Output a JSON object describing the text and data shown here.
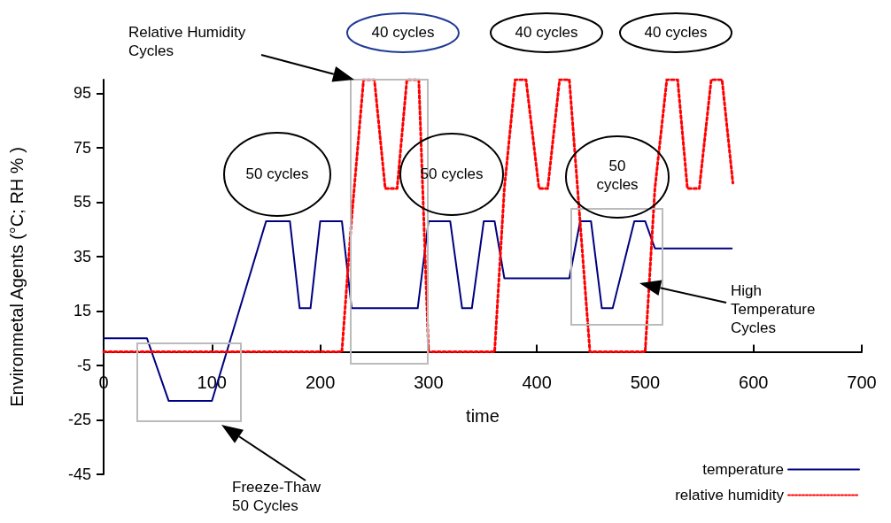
{
  "chart_data": {
    "type": "line",
    "xlabel": "time",
    "ylabel": "Environmetal Agents (°C; RH % )",
    "xlim": [
      0,
      700
    ],
    "xticks": [
      0,
      100,
      200,
      300,
      400,
      500,
      600,
      700
    ],
    "ylim": [
      -45,
      100
    ],
    "yticks": [
      -45,
      -25,
      -5,
      15,
      35,
      55,
      75,
      95
    ],
    "grid": false,
    "legend": "bottom right",
    "series": [
      {
        "name": "temperature",
        "color": "#000080",
        "line_style": "solid",
        "x": [
          0,
          40,
          60,
          100,
          150,
          172,
          181,
          191,
          200,
          220,
          229,
          290,
          300,
          320,
          331,
          340,
          351,
          361,
          370,
          430,
          440,
          450,
          460,
          470,
          490,
          500,
          509,
          580
        ],
        "values": [
          5,
          5,
          -18,
          -18,
          48,
          48,
          16,
          16,
          48,
          48,
          16,
          16,
          48,
          48,
          16,
          16,
          48,
          48,
          27,
          27,
          48,
          48,
          16,
          16,
          48,
          48,
          38,
          38
        ]
      },
      {
        "name": "relative humidity",
        "color": "#ff0000",
        "line_style": "dotted",
        "x": [
          0,
          220,
          229,
          240,
          250,
          260,
          271,
          280,
          291,
          300,
          361,
          370,
          380,
          390,
          402,
          410,
          421,
          430,
          449,
          500,
          509,
          520,
          530,
          539,
          550,
          561,
          571,
          581
        ],
        "values": [
          0,
          0,
          49,
          100,
          100,
          60,
          60,
          100,
          100,
          0,
          0,
          60,
          100,
          100,
          60,
          60,
          100,
          100,
          0,
          0,
          60,
          100,
          100,
          60,
          60,
          100,
          100,
          62
        ]
      }
    ],
    "annotations": [
      "Relative Humidity Cycles",
      "40 cycles",
      "40 cycles",
      "40 cycles",
      "50 cycles",
      "50 cycles",
      "50 cycles",
      "High Temperature Cycles",
      "Freeze-Thaw 50 Cycles"
    ]
  }
}
